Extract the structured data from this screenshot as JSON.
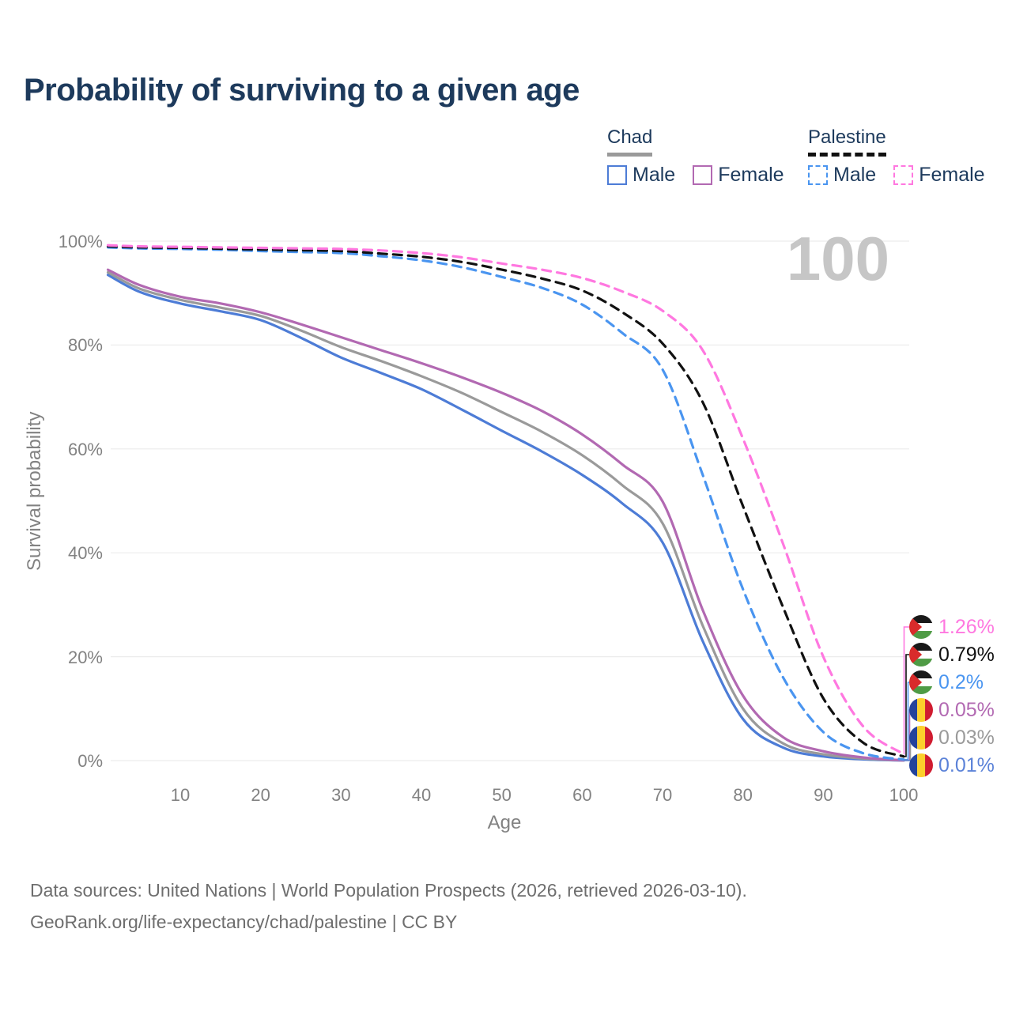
{
  "title": "Probability of surviving to a given age",
  "watermark": "100",
  "legend": {
    "groups": [
      {
        "name": "Chad",
        "underline": "solid",
        "items": [
          {
            "label": "Male",
            "color": "#4d7cd6",
            "dashed": false
          },
          {
            "label": "Female",
            "color": "#b269b2",
            "dashed": false
          }
        ]
      },
      {
        "name": "Palestine",
        "underline": "dashed",
        "items": [
          {
            "label": "Male",
            "color": "#4a95f0",
            "dashed": true
          },
          {
            "label": "Female",
            "color": "#ff78e0",
            "dashed": true
          }
        ]
      }
    ]
  },
  "yaxis": {
    "label": "Survival probability",
    "ticks": [
      "0%",
      "20%",
      "40%",
      "60%",
      "80%",
      "100%"
    ]
  },
  "xaxis": {
    "label": "Age",
    "ticks": [
      "10",
      "20",
      "30",
      "40",
      "50",
      "60",
      "70",
      "80",
      "90",
      "100"
    ]
  },
  "end_labels": [
    {
      "value": "1.26%",
      "color": "#ff78e0",
      "flag": "palestine"
    },
    {
      "value": "0.79%",
      "color": "#111111",
      "flag": "palestine"
    },
    {
      "value": "0.2%",
      "color": "#4a95f0",
      "flag": "palestine"
    },
    {
      "value": "0.05%",
      "color": "#b269b2",
      "flag": "chad"
    },
    {
      "value": "0.03%",
      "color": "#9a9a9a",
      "flag": "chad"
    },
    {
      "value": "0.01%",
      "color": "#5b82d8",
      "flag": "chad"
    }
  ],
  "source": {
    "line1": "Data sources: United Nations | World Population Prospects (2026, retrieved 2026-03-10).",
    "line2": "GeoRank.org/life-expectancy/chad/palestine | CC BY"
  },
  "colors": {
    "title": "#1d3a5c",
    "gridline": "#ececec",
    "axis_text": "#828282",
    "watermark": "#c6c6c6"
  },
  "chart_data": {
    "type": "line",
    "title": "Probability of surviving to a given age",
    "xlabel": "Age",
    "ylabel": "Survival probability",
    "xlim": [
      1,
      100
    ],
    "ylim": [
      0,
      100
    ],
    "grid": true,
    "legend_position": "top-right",
    "x": [
      1,
      5,
      10,
      15,
      20,
      25,
      30,
      35,
      40,
      45,
      50,
      55,
      60,
      65,
      70,
      75,
      80,
      85,
      90,
      95,
      100
    ],
    "series": [
      {
        "name": "Chad Male",
        "color": "#4d7cd6",
        "style": "solid",
        "end_value_pct": 0.01,
        "values": [
          93.5,
          90.2,
          88.0,
          86.5,
          84.8,
          81.4,
          77.6,
          74.6,
          71.5,
          67.6,
          63.5,
          59.5,
          55.0,
          49.5,
          42.0,
          23.0,
          8.0,
          2.5,
          0.8,
          0.25,
          0.01
        ]
      },
      {
        "name": "Chad Both sexes",
        "color": "#9a9a9a",
        "style": "solid",
        "end_value_pct": 0.03,
        "values": [
          94.0,
          90.8,
          88.7,
          87.2,
          85.6,
          82.8,
          79.6,
          76.9,
          74.0,
          70.8,
          67.1,
          63.3,
          58.8,
          53.0,
          45.7,
          26.0,
          10.0,
          3.3,
          1.2,
          0.4,
          0.03
        ]
      },
      {
        "name": "Chad Female",
        "color": "#b269b2",
        "style": "solid",
        "end_value_pct": 0.05,
        "values": [
          94.5,
          91.5,
          89.3,
          88.0,
          86.3,
          84.0,
          81.5,
          79.0,
          76.5,
          73.8,
          70.8,
          67.3,
          62.8,
          57.0,
          49.9,
          29.0,
          12.5,
          4.5,
          1.8,
          0.6,
          0.05
        ]
      },
      {
        "name": "Palestine Male",
        "color": "#4a95f0",
        "style": "dashed",
        "end_value_pct": 0.2,
        "values": [
          98.8,
          98.6,
          98.5,
          98.35,
          98.1,
          97.9,
          97.7,
          97.1,
          96.3,
          95.0,
          93.1,
          91.0,
          87.8,
          82.3,
          75.3,
          55.0,
          33.0,
          16.0,
          5.5,
          1.4,
          0.2
        ]
      },
      {
        "name": "Palestine Both sexes",
        "color": "#111111",
        "style": "dashed",
        "end_value_pct": 0.79,
        "values": [
          99.0,
          98.8,
          98.7,
          98.55,
          98.4,
          98.25,
          98.1,
          97.6,
          97.0,
          96.0,
          94.5,
          92.8,
          90.5,
          86.3,
          80.3,
          69.0,
          49.0,
          29.5,
          12.0,
          3.4,
          0.79
        ]
      },
      {
        "name": "Palestine Female",
        "color": "#ff78e0",
        "style": "dashed",
        "end_value_pct": 1.26,
        "values": [
          99.2,
          99.0,
          98.9,
          98.8,
          98.7,
          98.6,
          98.5,
          98.2,
          97.7,
          96.9,
          95.7,
          94.5,
          92.9,
          90.3,
          86.6,
          79.0,
          62.0,
          41.7,
          20.0,
          6.5,
          1.26
        ]
      }
    ]
  }
}
